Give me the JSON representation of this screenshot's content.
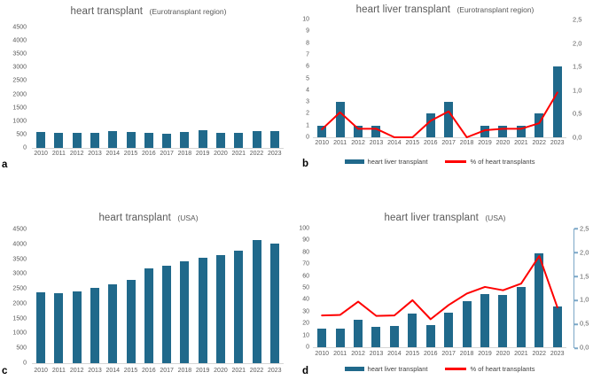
{
  "colors": {
    "bar": "#20698b",
    "line": "#fe0000",
    "right_axis": "#7ba7c7",
    "text": "#595959"
  },
  "chart_data": [
    {
      "panel": "a",
      "type": "bar",
      "title": "heart transplant",
      "title_suffix": "(Eurotransplant region)",
      "categories": [
        "2010",
        "2011",
        "2012",
        "2013",
        "2014",
        "2015",
        "2016",
        "2017",
        "2018",
        "2019",
        "2020",
        "2021",
        "2022",
        "2023"
      ],
      "values": [
        600,
        550,
        570,
        560,
        615,
        585,
        570,
        530,
        600,
        650,
        565,
        550,
        620,
        620
      ],
      "ylim": [
        0,
        4500
      ],
      "y_ticks": [
        "4500",
        "4000",
        "3500",
        "3000",
        "2500",
        "2000",
        "1500",
        "1000",
        "500",
        "0"
      ],
      "grid": false,
      "legend": null
    },
    {
      "panel": "b",
      "type": "bar+line",
      "title": "heart liver transplant",
      "title_suffix": "(Eurotransplant region)",
      "categories": [
        "2010",
        "2011",
        "2012",
        "2013",
        "2014",
        "2015",
        "2016",
        "2017",
        "2018",
        "2019",
        "2020",
        "2021",
        "2022",
        "2023"
      ],
      "series": [
        {
          "name": "heart liver transplant",
          "type": "bar",
          "axis": "left",
          "values": [
            1,
            3,
            1,
            1,
            0,
            0,
            2,
            3,
            0,
            1,
            1,
            1,
            2,
            6
          ]
        },
        {
          "name": "% of heart transplants",
          "type": "line",
          "axis": "right",
          "values": [
            0.17,
            0.53,
            0.18,
            0.18,
            0,
            0,
            0.35,
            0.55,
            0,
            0.15,
            0.18,
            0.18,
            0.3,
            0.95
          ]
        }
      ],
      "left_ylim": [
        0,
        10
      ],
      "left_ticks": [
        "10",
        "9",
        "8",
        "7",
        "6",
        "5",
        "4",
        "3",
        "2",
        "1",
        "0"
      ],
      "right_ylim": [
        0,
        2.5
      ],
      "right_ticks": [
        "2,5",
        "2,0",
        "1,5",
        "1,0",
        "0,5",
        "0,0"
      ],
      "grid": false,
      "legend_position": "bottom"
    },
    {
      "panel": "c",
      "type": "bar",
      "title": "heart transplant",
      "title_suffix": "(USA)",
      "categories": [
        "2010",
        "2011",
        "2012",
        "2013",
        "2014",
        "2015",
        "2016",
        "2017",
        "2018",
        "2019",
        "2020",
        "2021",
        "2022",
        "2023"
      ],
      "values": [
        2370,
        2350,
        2400,
        2540,
        2660,
        2800,
        3200,
        3270,
        3440,
        3550,
        3650,
        3800,
        4150,
        4030
      ],
      "ylim": [
        0,
        4500
      ],
      "y_ticks": [
        "4500",
        "4000",
        "3500",
        "3000",
        "2500",
        "2000",
        "1500",
        "1000",
        "500",
        "0"
      ],
      "grid": false,
      "legend": null
    },
    {
      "panel": "d",
      "type": "bar+line",
      "title": "heart liver transplant",
      "title_suffix": "(USA)",
      "categories": [
        "2010",
        "2011",
        "2012",
        "2013",
        "2014",
        "2015",
        "2016",
        "2017",
        "2018",
        "2019",
        "2020",
        "2021",
        "2022",
        "2023"
      ],
      "series": [
        {
          "name": "heart liver transplant",
          "type": "bar",
          "axis": "left",
          "values": [
            16,
            16,
            23,
            17,
            18,
            28,
            19,
            29,
            39,
            45,
            44,
            51,
            79,
            34
          ]
        },
        {
          "name": "% of heart transplants",
          "type": "line",
          "axis": "right",
          "values": [
            0.67,
            0.68,
            0.96,
            0.66,
            0.67,
            0.99,
            0.59,
            0.89,
            1.13,
            1.27,
            1.2,
            1.34,
            1.92,
            0.84
          ]
        }
      ],
      "left_ylim": [
        0,
        100
      ],
      "left_ticks": [
        "100",
        "90",
        "80",
        "70",
        "60",
        "50",
        "40",
        "30",
        "20",
        "10",
        "0"
      ],
      "right_ylim": [
        0,
        2.5
      ],
      "right_ticks": [
        "2,5",
        "2,0",
        "1,5",
        "1,0",
        "0,5",
        "0,0"
      ],
      "right_axis_line": true,
      "grid": false,
      "legend_position": "bottom"
    }
  ]
}
